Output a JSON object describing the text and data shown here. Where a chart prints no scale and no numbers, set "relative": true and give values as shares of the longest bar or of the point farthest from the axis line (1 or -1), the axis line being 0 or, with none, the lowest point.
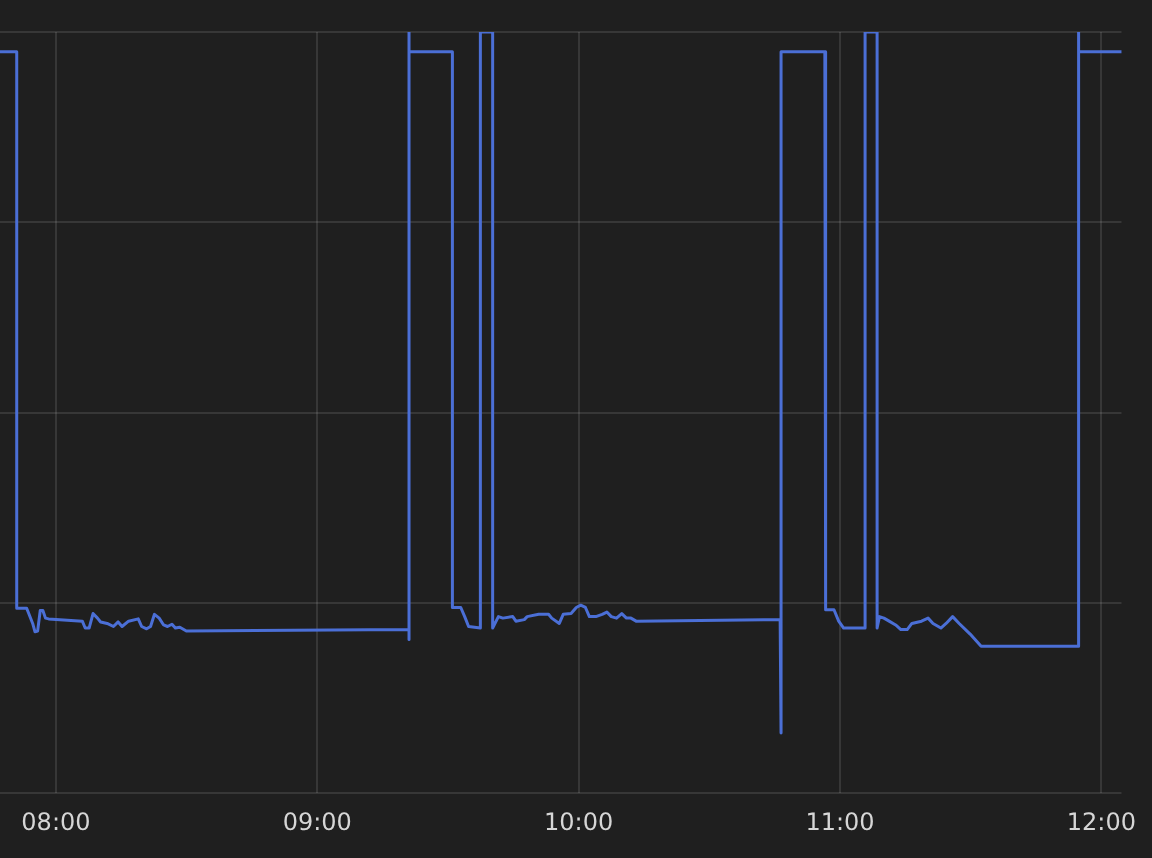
{
  "chart_data": {
    "type": "line",
    "relative": true,
    "color": "#4b6fd6",
    "grid": true,
    "xlim": [
      7.786,
      12.077
    ],
    "xticks": [
      {
        "value": 8,
        "label": "08:00"
      },
      {
        "value": 9,
        "label": "09:00"
      },
      {
        "value": 10,
        "label": "10:00"
      },
      {
        "value": 11,
        "label": "11:00"
      },
      {
        "value": 12,
        "label": "12:00"
      }
    ],
    "x": [
      7.786,
      7.85,
      7.85,
      7.888,
      7.896,
      7.911,
      7.92,
      7.93,
      7.94,
      7.95,
      7.96,
      7.972,
      8.101,
      8.112,
      8.127,
      8.142,
      8.159,
      8.171,
      8.196,
      8.22,
      8.238,
      8.253,
      8.278,
      8.315,
      8.328,
      8.347,
      8.362,
      8.377,
      8.395,
      8.412,
      8.427,
      8.444,
      8.457,
      8.474,
      8.499,
      9.351,
      9.351,
      9.351,
      9.351,
      9.517,
      9.517,
      9.549,
      9.564,
      9.579,
      9.624,
      9.624,
      9.671,
      9.671,
      9.693,
      9.71,
      9.748,
      9.76,
      9.792,
      9.803,
      9.847,
      9.885,
      9.897,
      9.926,
      9.941,
      9.971,
      9.991,
      10.008,
      10.026,
      10.041,
      10.066,
      10.09,
      10.108,
      10.125,
      10.145,
      10.165,
      10.183,
      10.2,
      10.22,
      10.771,
      10.771,
      10.778,
      10.942,
      10.945,
      10.977,
      10.995,
      11.014,
      11.096,
      11.096,
      11.142,
      11.142,
      11.151,
      11.168,
      11.188,
      11.213,
      11.233,
      11.257,
      11.275,
      11.312,
      11.337,
      11.356,
      11.386,
      11.406,
      11.431,
      11.456,
      11.498,
      11.54,
      11.913,
      11.913,
      11.913,
      12.077
    ],
    "values": [
      0.974,
      0.974,
      0.243,
      0.243,
      0.236,
      0.223,
      0.212,
      0.213,
      0.24,
      0.24,
      0.23,
      0.229,
      0.226,
      0.217,
      0.217,
      0.236,
      0.23,
      0.225,
      0.223,
      0.219,
      0.225,
      0.219,
      0.226,
      0.229,
      0.219,
      0.216,
      0.219,
      0.235,
      0.23,
      0.221,
      0.219,
      0.222,
      0.217,
      0.218,
      0.213,
      0.215,
      0.202,
      1,
      0.974,
      0.974,
      0.244,
      0.244,
      0.232,
      0.219,
      0.217,
      1,
      1,
      0.217,
      0.232,
      0.23,
      0.232,
      0.226,
      0.228,
      0.232,
      0.235,
      0.235,
      0.23,
      0.223,
      0.235,
      0.236,
      0.244,
      0.247,
      0.244,
      0.232,
      0.232,
      0.235,
      0.238,
      0.232,
      0.23,
      0.236,
      0.23,
      0.23,
      0.226,
      0.228,
      0.079,
      0.974,
      0.974,
      0.241,
      0.241,
      0.226,
      0.217,
      0.217,
      1,
      1,
      0.217,
      0.232,
      0.23,
      0.226,
      0.221,
      0.215,
      0.215,
      0.223,
      0.226,
      0.23,
      0.223,
      0.217,
      0.223,
      0.232,
      0.223,
      0.209,
      0.193,
      0.193,
      1,
      0.974,
      0.974
    ]
  }
}
